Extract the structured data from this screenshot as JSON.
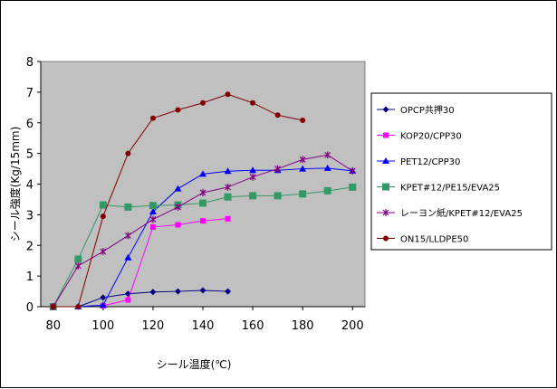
{
  "chart_data": {
    "type": "line",
    "title": "",
    "xlabel": "シール温度(℃)",
    "ylabel": "シール強度(Kg/15mm)",
    "xlim": [
      75,
      205
    ],
    "ylim": [
      0,
      8
    ],
    "xticks": [
      80,
      100,
      120,
      140,
      160,
      180,
      200
    ],
    "yticks": [
      0,
      1,
      2,
      3,
      4,
      5,
      6,
      7,
      8
    ],
    "grid": false,
    "plot_background": "#c0c0c0",
    "legend_position": "right",
    "series": [
      {
        "name": "OPCP共押30",
        "color": "#000080",
        "marker": "diamond",
        "x": [
          80,
          90,
          100,
          110,
          120,
          130,
          140,
          150
        ],
        "y": [
          0,
          0,
          0.3,
          0.42,
          0.48,
          0.5,
          0.53,
          0.5
        ]
      },
      {
        "name": "KOP20/CPP30",
        "color": "#ff00ff",
        "marker": "square",
        "x": [
          100,
          110,
          120,
          130,
          140,
          150
        ],
        "y": [
          0.03,
          0.22,
          2.6,
          2.67,
          2.8,
          2.87
        ]
      },
      {
        "name": "PET12/CPP30",
        "color": "#0000ff",
        "marker": "triangle",
        "x": [
          90,
          100,
          110,
          120,
          130,
          140,
          150,
          160,
          170,
          180,
          190,
          200
        ],
        "y": [
          0,
          0.05,
          1.6,
          3.1,
          3.85,
          4.33,
          4.42,
          4.45,
          4.45,
          4.5,
          4.52,
          4.43
        ]
      },
      {
        "name": "KPET#12/PE15/EVA25",
        "color": "#339966",
        "marker": "square-large",
        "x": [
          80,
          90,
          100,
          110,
          120,
          130,
          140,
          150,
          160,
          170,
          180,
          190,
          200
        ],
        "y": [
          0,
          1.55,
          3.32,
          3.25,
          3.3,
          3.32,
          3.38,
          3.58,
          3.62,
          3.62,
          3.68,
          3.78,
          3.9
        ]
      },
      {
        "name": "レーヨン紙/KPET#12/EVA25",
        "color": "#800080",
        "marker": "star",
        "x": [
          80,
          90,
          100,
          110,
          120,
          130,
          140,
          150,
          160,
          170,
          180,
          190,
          200
        ],
        "y": [
          0,
          1.33,
          1.8,
          2.32,
          2.85,
          3.25,
          3.72,
          3.9,
          4.23,
          4.5,
          4.8,
          4.95,
          4.43
        ]
      },
      {
        "name": "ON15/LLDPE50",
        "color": "#800000",
        "marker": "circle",
        "x": [
          80,
          90,
          100,
          110,
          120,
          130,
          140,
          150,
          160,
          170,
          180
        ],
        "y": [
          0,
          0,
          2.95,
          5.0,
          6.15,
          6.42,
          6.65,
          6.93,
          6.65,
          6.25,
          6.08
        ]
      }
    ]
  }
}
